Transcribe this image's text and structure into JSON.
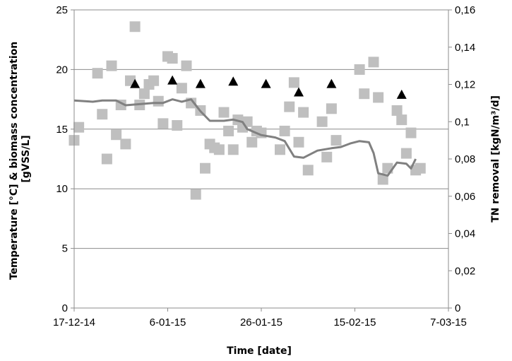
{
  "chart_data": {
    "type": "scatter",
    "title": "",
    "xlabel": "Time [date]",
    "ylabel_left": "Temperature [°C] & biomass concentration [gVSS/L]",
    "ylabel_right": "TN removal [kgN/m³/d]",
    "x_tick_labels": [
      "17-12-14",
      "6-01-15",
      "26-01-15",
      "15-02-15",
      "7-03-15"
    ],
    "xlim": [
      "2014-12-17",
      "2015-03-07"
    ],
    "ylim_left": [
      0,
      25
    ],
    "ylim_right": [
      0,
      0.16
    ],
    "y_left_ticks": [
      "0",
      "5",
      "10",
      "15",
      "20",
      "25"
    ],
    "y_right_ticks": [
      "0",
      "0,02",
      "0,04",
      "0,06",
      "0,08",
      "0,1",
      "0,12",
      "0,14",
      "0,16"
    ],
    "grid": "horizontal",
    "legend": "none",
    "series": [
      {
        "marker": "square",
        "axis": "right",
        "color": "#BFBFBF",
        "points": [
          [
            "2014-12-17",
            0.09
          ],
          [
            "2014-12-18",
            0.097
          ],
          [
            "2014-12-22",
            0.126
          ],
          [
            "2014-12-23",
            0.104
          ],
          [
            "2014-12-24",
            0.08
          ],
          [
            "2014-12-25",
            0.13
          ],
          [
            "2014-12-26",
            0.093
          ],
          [
            "2014-12-27",
            0.109
          ],
          [
            "2014-12-28",
            0.088
          ],
          [
            "2014-12-29",
            0.122
          ],
          [
            "2014-12-30",
            0.151
          ],
          [
            "2014-12-31",
            0.109
          ],
          [
            "2015-01-01",
            0.115
          ],
          [
            "2015-01-02",
            0.12
          ],
          [
            "2015-01-03",
            0.122
          ],
          [
            "2015-01-04",
            0.111
          ],
          [
            "2015-01-05",
            0.099
          ],
          [
            "2015-01-06",
            0.135
          ],
          [
            "2015-01-07",
            0.134
          ],
          [
            "2015-01-08",
            0.098
          ],
          [
            "2015-01-09",
            0.118
          ],
          [
            "2015-01-10",
            0.13
          ],
          [
            "2015-01-11",
            0.11
          ],
          [
            "2015-01-12",
            0.061
          ],
          [
            "2015-01-13",
            0.106
          ],
          [
            "2015-01-14",
            0.075
          ],
          [
            "2015-01-15",
            0.088
          ],
          [
            "2015-01-16",
            0.086
          ],
          [
            "2015-01-17",
            0.085
          ],
          [
            "2015-01-18",
            0.105
          ],
          [
            "2015-01-19",
            0.095
          ],
          [
            "2015-01-20",
            0.085
          ],
          [
            "2015-01-21",
            0.101
          ],
          [
            "2015-01-22",
            0.097
          ],
          [
            "2015-01-23",
            0.1
          ],
          [
            "2015-01-24",
            0.089
          ],
          [
            "2015-01-25",
            0.095
          ],
          [
            "2015-01-26",
            0.094
          ],
          [
            "2015-01-30",
            0.085
          ],
          [
            "2015-01-31",
            0.095
          ],
          [
            "2015-02-01",
            0.108
          ],
          [
            "2015-02-02",
            0.121
          ],
          [
            "2015-02-03",
            0.089
          ],
          [
            "2015-02-04",
            0.105
          ],
          [
            "2015-02-05",
            0.074
          ],
          [
            "2015-02-08",
            0.1
          ],
          [
            "2015-02-09",
            0.081
          ],
          [
            "2015-02-10",
            0.107
          ],
          [
            "2015-02-11",
            0.09
          ],
          [
            "2015-02-16",
            0.128
          ],
          [
            "2015-02-17",
            0.115
          ],
          [
            "2015-02-19",
            0.132
          ],
          [
            "2015-02-20",
            0.113
          ],
          [
            "2015-02-21",
            0.069
          ],
          [
            "2015-02-22",
            0.075
          ],
          [
            "2015-02-24",
            0.106
          ],
          [
            "2015-02-25",
            0.101
          ],
          [
            "2015-02-26",
            0.083
          ],
          [
            "2015-02-27",
            0.094
          ],
          [
            "2015-02-28",
            0.074
          ],
          [
            "2015-03-01",
            0.075
          ]
        ]
      },
      {
        "marker": "triangle",
        "axis": "left",
        "color": "#000000",
        "points": [
          [
            "2014-12-30",
            18.8
          ],
          [
            "2015-01-07",
            19.1
          ],
          [
            "2015-01-13",
            18.8
          ],
          [
            "2015-01-20",
            19.0
          ],
          [
            "2015-01-27",
            18.8
          ],
          [
            "2015-02-03",
            18.1
          ],
          [
            "2015-02-10",
            18.8
          ],
          [
            "2015-02-25",
            17.9
          ]
        ]
      },
      {
        "marker": "line",
        "axis": "left",
        "color": "#808080",
        "points": [
          [
            "2014-12-17",
            17.4
          ],
          [
            "2014-12-21",
            17.3
          ],
          [
            "2014-12-23",
            17.4
          ],
          [
            "2014-12-26",
            17.4
          ],
          [
            "2014-12-28",
            17.0
          ],
          [
            "2014-12-31",
            17.1
          ],
          [
            "2015-01-03",
            17.2
          ],
          [
            "2015-01-05",
            17.2
          ],
          [
            "2015-01-07",
            17.5
          ],
          [
            "2015-01-09",
            17.3
          ],
          [
            "2015-01-11",
            17.5
          ],
          [
            "2015-01-13",
            16.5
          ],
          [
            "2015-01-15",
            15.7
          ],
          [
            "2015-01-18",
            15.7
          ],
          [
            "2015-01-20",
            15.8
          ],
          [
            "2015-01-22",
            15.6
          ],
          [
            "2015-01-23",
            15.0
          ],
          [
            "2015-01-26",
            14.5
          ],
          [
            "2015-01-29",
            14.3
          ],
          [
            "2015-01-31",
            14.0
          ],
          [
            "2015-02-02",
            12.7
          ],
          [
            "2015-02-04",
            12.6
          ],
          [
            "2015-02-07",
            13.2
          ],
          [
            "2015-02-10",
            13.4
          ],
          [
            "2015-02-12",
            13.5
          ],
          [
            "2015-02-14",
            13.8
          ],
          [
            "2015-02-16",
            14.0
          ],
          [
            "2015-02-18",
            13.9
          ],
          [
            "2015-02-19",
            13.0
          ],
          [
            "2015-02-20",
            11.3
          ],
          [
            "2015-02-22",
            11.1
          ],
          [
            "2015-02-24",
            12.2
          ],
          [
            "2015-02-26",
            12.1
          ],
          [
            "2015-02-27",
            11.7
          ],
          [
            "2015-02-28",
            12.5
          ]
        ]
      }
    ]
  }
}
